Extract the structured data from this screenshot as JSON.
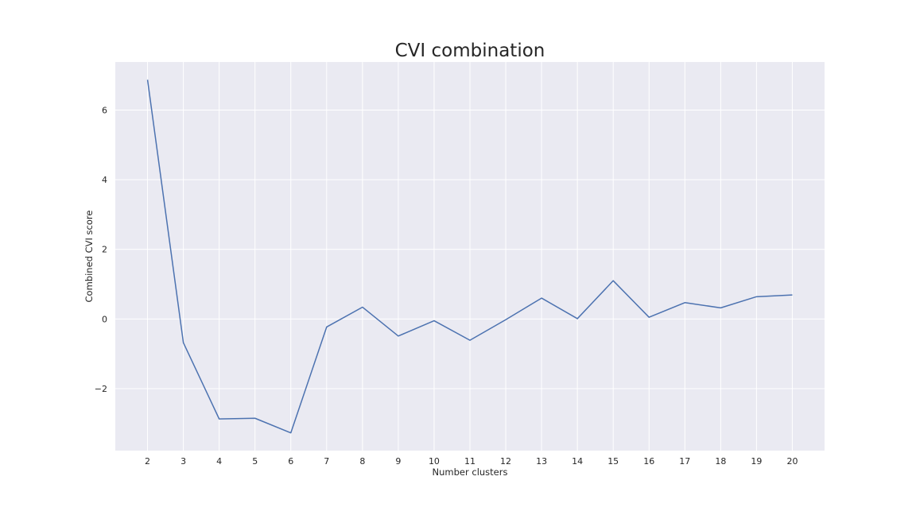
{
  "chart_data": {
    "type": "line",
    "title": "CVI combination",
    "xlabel": "Number clusters",
    "ylabel": "Combined CVI score",
    "x": [
      2,
      3,
      4,
      5,
      6,
      7,
      8,
      9,
      10,
      11,
      12,
      13,
      14,
      15,
      16,
      17,
      18,
      19,
      20
    ],
    "series": [
      {
        "values": [
          6.87,
          -0.68,
          -2.87,
          -2.85,
          -3.27,
          -0.23,
          0.34,
          -0.49,
          -0.05,
          -0.61,
          -0.02,
          0.6,
          0.01,
          1.1,
          0.05,
          0.47,
          0.32,
          0.64,
          0.69
        ]
      }
    ],
    "xticks": [
      "2",
      "3",
      "4",
      "5",
      "6",
      "7",
      "8",
      "9",
      "10",
      "11",
      "12",
      "13",
      "14",
      "15",
      "16",
      "17",
      "18",
      "19",
      "20"
    ],
    "yticks": [
      -2,
      0,
      2,
      4,
      6
    ],
    "ytick_labels": [
      "−2",
      "0",
      "2",
      "4",
      "6"
    ],
    "xlim": [
      1.1,
      20.9
    ],
    "ylim": [
      -3.78,
      7.38
    ],
    "grid": true,
    "colors": {
      "background": "#eaeaf2",
      "grid": "#ffffff",
      "line": "#4c72b0",
      "text": "#262626"
    }
  }
}
